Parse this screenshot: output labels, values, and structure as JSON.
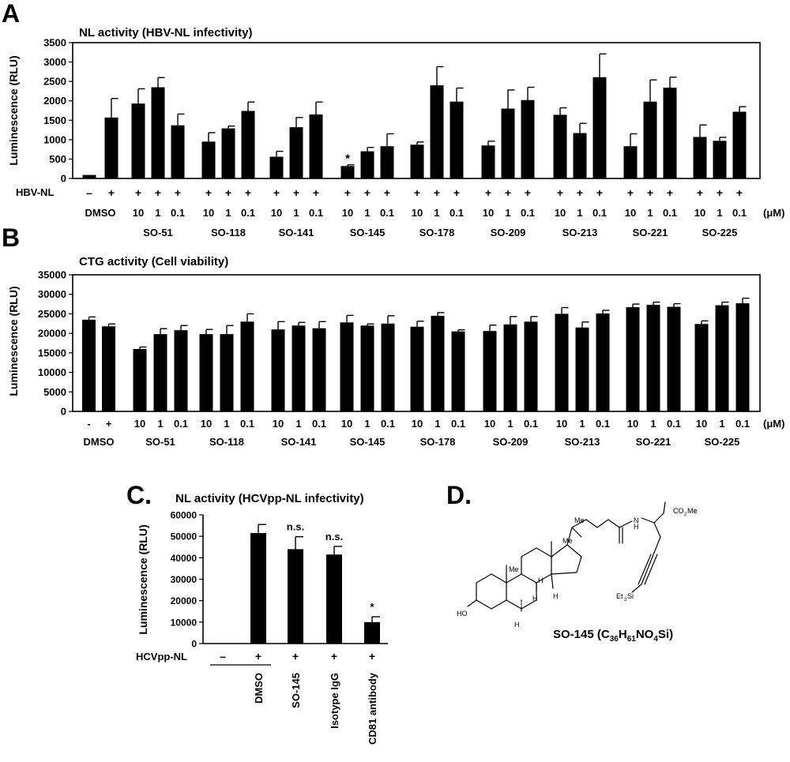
{
  "panel_letters": {
    "a": "A",
    "b": "B",
    "c": "C.",
    "d": "D."
  },
  "unit_label": "(μM)",
  "chart_data": [
    {
      "id": "A",
      "type": "bar",
      "title": "NL activity (HBV-NL infectivity)",
      "ylabel": "Luminescence (RLU)",
      "ylim": [
        0,
        3500
      ],
      "yticks": [
        0,
        500,
        1000,
        1500,
        2000,
        2500,
        3000,
        3500
      ],
      "row_label": "HBV-NL",
      "groups": [
        {
          "name": "DMSO",
          "bars": [
            {
              "label": "",
              "sign": "–",
              "value": 90,
              "error": 0
            },
            {
              "label": "",
              "sign": "+",
              "value": 1570,
              "error": 490
            }
          ]
        },
        {
          "name": "SO-51",
          "bars": [
            {
              "label": "10",
              "sign": "+",
              "value": 1930,
              "error": 380
            },
            {
              "label": "1",
              "sign": "+",
              "value": 2350,
              "error": 250
            },
            {
              "label": "0.1",
              "sign": "+",
              "value": 1370,
              "error": 290
            }
          ]
        },
        {
          "name": "SO-118",
          "bars": [
            {
              "label": "10",
              "sign": "+",
              "value": 950,
              "error": 230
            },
            {
              "label": "1",
              "sign": "+",
              "value": 1290,
              "error": 60
            },
            {
              "label": "0.1",
              "sign": "+",
              "value": 1740,
              "error": 230
            }
          ]
        },
        {
          "name": "SO-141",
          "bars": [
            {
              "label": "10",
              "sign": "+",
              "value": 560,
              "error": 140
            },
            {
              "label": "1",
              "sign": "+",
              "value": 1320,
              "error": 250
            },
            {
              "label": "0.1",
              "sign": "+",
              "value": 1650,
              "error": 320
            }
          ]
        },
        {
          "name": "SO-145",
          "bars": [
            {
              "label": "10",
              "sign": "+",
              "value": 320,
              "error": 30,
              "annotation": "*"
            },
            {
              "label": "1",
              "sign": "+",
              "value": 700,
              "error": 100
            },
            {
              "label": "0.1",
              "sign": "+",
              "value": 830,
              "error": 320
            }
          ]
        },
        {
          "name": "SO-178",
          "bars": [
            {
              "label": "10",
              "sign": "+",
              "value": 870,
              "error": 70
            },
            {
              "label": "1",
              "sign": "+",
              "value": 2400,
              "error": 480
            },
            {
              "label": "0.1",
              "sign": "+",
              "value": 1980,
              "error": 350
            }
          ]
        },
        {
          "name": "SO-209",
          "bars": [
            {
              "label": "10",
              "sign": "+",
              "value": 850,
              "error": 110
            },
            {
              "label": "1",
              "sign": "+",
              "value": 1800,
              "error": 480
            },
            {
              "label": "0.1",
              "sign": "+",
              "value": 2020,
              "error": 330
            }
          ]
        },
        {
          "name": "SO-213",
          "bars": [
            {
              "label": "10",
              "sign": "+",
              "value": 1640,
              "error": 180
            },
            {
              "label": "1",
              "sign": "+",
              "value": 1170,
              "error": 250
            },
            {
              "label": "0.1",
              "sign": "+",
              "value": 2610,
              "error": 600
            }
          ]
        },
        {
          "name": "SO-221",
          "bars": [
            {
              "label": "10",
              "sign": "+",
              "value": 830,
              "error": 320
            },
            {
              "label": "1",
              "sign": "+",
              "value": 1980,
              "error": 560
            },
            {
              "label": "0.1",
              "sign": "+",
              "value": 2340,
              "error": 270
            }
          ]
        },
        {
          "name": "SO-225",
          "bars": [
            {
              "label": "10",
              "sign": "+",
              "value": 1070,
              "error": 310
            },
            {
              "label": "1",
              "sign": "+",
              "value": 970,
              "error": 90
            },
            {
              "label": "0.1",
              "sign": "+",
              "value": 1720,
              "error": 130
            }
          ]
        }
      ]
    },
    {
      "id": "B",
      "type": "bar",
      "title": "CTG activity (Cell viability)",
      "ylabel": "Luminescence (RLU)",
      "ylim": [
        0,
        35000
      ],
      "yticks": [
        0,
        5000,
        10000,
        15000,
        20000,
        25000,
        30000,
        35000
      ],
      "groups": [
        {
          "name": "DMSO",
          "bars": [
            {
              "label": "-",
              "value": 23500,
              "error": 700
            },
            {
              "label": "+",
              "value": 21800,
              "error": 600
            }
          ]
        },
        {
          "name": "SO-51",
          "bars": [
            {
              "label": "10",
              "value": 16000,
              "error": 500
            },
            {
              "label": "1",
              "value": 19800,
              "error": 1400
            },
            {
              "label": "0.1",
              "value": 20800,
              "error": 1200
            }
          ]
        },
        {
          "name": "SO-118",
          "bars": [
            {
              "label": "10",
              "value": 19800,
              "error": 1200
            },
            {
              "label": "1",
              "value": 19800,
              "error": 2200
            },
            {
              "label": "0.1",
              "value": 23000,
              "error": 2000
            }
          ]
        },
        {
          "name": "SO-141",
          "bars": [
            {
              "label": "10",
              "value": 21000,
              "error": 2000
            },
            {
              "label": "1",
              "value": 22000,
              "error": 800
            },
            {
              "label": "0.1",
              "value": 21300,
              "error": 1700
            }
          ]
        },
        {
          "name": "SO-145",
          "bars": [
            {
              "label": "10",
              "value": 22800,
              "error": 1800
            },
            {
              "label": "1",
              "value": 22000,
              "error": 400
            },
            {
              "label": "0.1",
              "value": 22500,
              "error": 2000
            }
          ]
        },
        {
          "name": "SO-178",
          "bars": [
            {
              "label": "10",
              "value": 21700,
              "error": 1400
            },
            {
              "label": "1",
              "value": 24500,
              "error": 800
            },
            {
              "label": "0.1",
              "value": 20500,
              "error": 400
            }
          ]
        },
        {
          "name": "SO-209",
          "bars": [
            {
              "label": "10",
              "value": 20600,
              "error": 1500
            },
            {
              "label": "1",
              "value": 22300,
              "error": 2000
            },
            {
              "label": "0.1",
              "value": 23000,
              "error": 1300
            }
          ]
        },
        {
          "name": "SO-213",
          "bars": [
            {
              "label": "10",
              "value": 25000,
              "error": 1600
            },
            {
              "label": "1",
              "value": 21500,
              "error": 1400
            },
            {
              "label": "0.1",
              "value": 25100,
              "error": 800
            }
          ]
        },
        {
          "name": "SO-221",
          "bars": [
            {
              "label": "10",
              "value": 26700,
              "error": 800
            },
            {
              "label": "1",
              "value": 27300,
              "error": 700
            },
            {
              "label": "0.1",
              "value": 26800,
              "error": 800
            }
          ]
        },
        {
          "name": "SO-225",
          "bars": [
            {
              "label": "10",
              "value": 22400,
              "error": 800
            },
            {
              "label": "1",
              "value": 27200,
              "error": 800
            },
            {
              "label": "0.1",
              "value": 27700,
              "error": 1300
            }
          ]
        }
      ]
    },
    {
      "id": "C",
      "type": "bar",
      "title": "NL activity (HCVpp-NL infectivity)",
      "ylabel": "Luminescence (RLU)",
      "ylim": [
        0,
        60000
      ],
      "yticks": [
        0,
        10000,
        20000,
        30000,
        40000,
        50000,
        60000
      ],
      "row_label": "HCVpp-NL",
      "underline_group": "DMSO",
      "bars": [
        {
          "sign": "–",
          "category": "",
          "value": 0,
          "error": 0,
          "annotation": ""
        },
        {
          "sign": "+",
          "category": "DMSO",
          "value": 51500,
          "error": 4000,
          "annotation": ""
        },
        {
          "sign": "+",
          "category": "SO-145",
          "value": 44000,
          "error": 5800,
          "annotation": "n.s."
        },
        {
          "sign": "+",
          "category": "Isotype IgG",
          "value": 41500,
          "error": 3800,
          "annotation": "n.s."
        },
        {
          "sign": "+",
          "category": "CD81 antibody",
          "value": 10000,
          "error": 2500,
          "annotation": "*"
        }
      ]
    }
  ],
  "panel_d": {
    "compound_name": "SO-145",
    "formula_parts": [
      "C",
      "36",
      "H",
      "61",
      "NO",
      "4",
      "Si"
    ],
    "atom_labels": {
      "me_side": "Me",
      "me_c18": "Me",
      "me_c19": "Me",
      "n_h": "N",
      "n_h2": "H",
      "co2me_a": "CO",
      "co2me_sub": "2",
      "co2me_b": "Me",
      "h8": "H",
      "h9": "H",
      "h14": "H",
      "h5": "H",
      "oh": "HO",
      "tes_a": "Et",
      "tes_sub": "3",
      "tes_b": "Si"
    }
  }
}
